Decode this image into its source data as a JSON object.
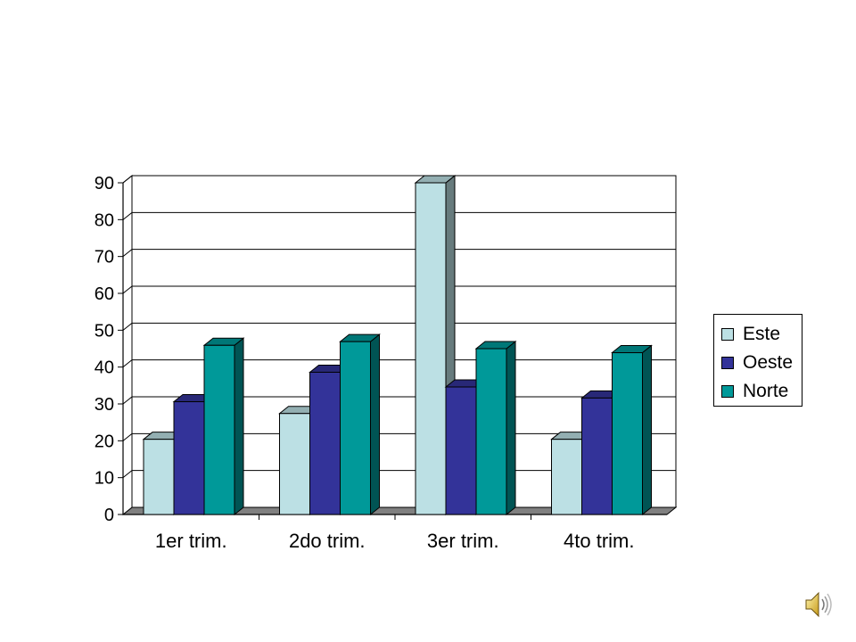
{
  "chart_data": {
    "type": "bar",
    "categories": [
      "1er trim.",
      "2do trim.",
      "3er trim.",
      "4to trim."
    ],
    "series": [
      {
        "name": "Este",
        "values": [
          20.4,
          27.4,
          90,
          20.4
        ],
        "color": "#BCE0E4"
      },
      {
        "name": "Oeste",
        "values": [
          30.6,
          38.6,
          34.6,
          31.6
        ],
        "color": "#333399"
      },
      {
        "name": "Norte",
        "values": [
          45.9,
          46.9,
          45,
          43.9
        ],
        "color": "#009999"
      }
    ],
    "ylim": [
      0,
      90
    ],
    "yticks": [
      "0",
      "10",
      "20",
      "30",
      "40",
      "50",
      "60",
      "70",
      "80",
      "90"
    ],
    "grid": true,
    "legend_position": "right",
    "title": "",
    "xlabel": "",
    "ylabel": ""
  },
  "icons": {
    "speaker": "speaker-icon"
  }
}
